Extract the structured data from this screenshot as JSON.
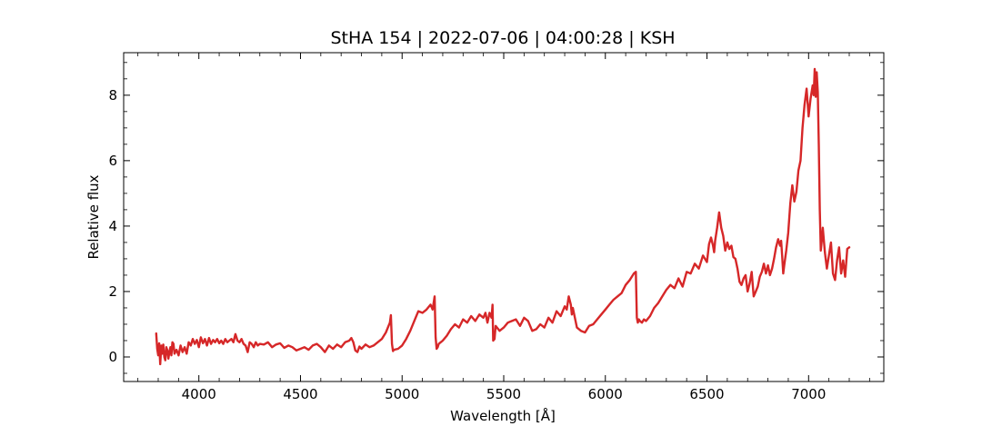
{
  "chart_data": {
    "type": "line",
    "title": "StHA 154 | 2022-07-06 | 04:00:28 | KSH",
    "xlabel": "Wavelength [Å]",
    "ylabel": "Relative flux",
    "xlim": [
      3630,
      7370
    ],
    "ylim": [
      -0.75,
      9.3
    ],
    "xticks": [
      4000,
      4500,
      5000,
      5500,
      6000,
      6500,
      7000
    ],
    "yticks": [
      0,
      2,
      4,
      6,
      8
    ],
    "grid": false,
    "line_color": "#d62728",
    "series": [
      {
        "x": [
          3790,
          3795,
          3800,
          3805,
          3810,
          3815,
          3820,
          3825,
          3830,
          3835,
          3840,
          3845,
          3850,
          3855,
          3860,
          3865,
          3870,
          3875,
          3880,
          3890,
          3900,
          3910,
          3920,
          3930,
          3940,
          3950,
          3960,
          3970,
          3980,
          3990,
          4000,
          4010,
          4020,
          4030,
          4040,
          4050,
          4060,
          4070,
          4080,
          4090,
          4100,
          4110,
          4120,
          4130,
          4140,
          4150,
          4160,
          4170,
          4180,
          4190,
          4200,
          4210,
          4220,
          4230,
          4240,
          4250,
          4260,
          4270,
          4280,
          4290,
          4300,
          4320,
          4340,
          4360,
          4380,
          4400,
          4420,
          4440,
          4460,
          4480,
          4500,
          4520,
          4540,
          4560,
          4580,
          4600,
          4620,
          4640,
          4660,
          4680,
          4700,
          4720,
          4740,
          4750,
          4760,
          4770,
          4780,
          4790,
          4800,
          4820,
          4840,
          4860,
          4880,
          4900,
          4920,
          4930,
          4940,
          4945,
          4950,
          4955,
          4960,
          4980,
          5000,
          5020,
          5040,
          5060,
          5080,
          5100,
          5120,
          5140,
          5150,
          5160,
          5165,
          5170,
          5175,
          5180,
          5190,
          5200,
          5220,
          5240,
          5260,
          5280,
          5300,
          5320,
          5340,
          5360,
          5380,
          5400,
          5410,
          5420,
          5430,
          5440,
          5445,
          5448,
          5455,
          5460,
          5480,
          5500,
          5520,
          5540,
          5560,
          5580,
          5600,
          5620,
          5640,
          5660,
          5680,
          5700,
          5720,
          5740,
          5760,
          5780,
          5800,
          5810,
          5820,
          5830,
          5835,
          5840,
          5860,
          5880,
          5900,
          5920,
          5940,
          5960,
          5980,
          6000,
          6020,
          6040,
          6060,
          6080,
          6100,
          6120,
          6140,
          6150,
          6155,
          6160,
          6165,
          6170,
          6180,
          6190,
          6200,
          6220,
          6240,
          6260,
          6280,
          6300,
          6320,
          6340,
          6360,
          6380,
          6400,
          6420,
          6440,
          6460,
          6480,
          6500,
          6510,
          6520,
          6530,
          6535,
          6540,
          6550,
          6560,
          6570,
          6580,
          6590,
          6600,
          6610,
          6620,
          6630,
          6640,
          6650,
          6660,
          6670,
          6680,
          6690,
          6700,
          6710,
          6720,
          6730,
          6740,
          6750,
          6760,
          6770,
          6780,
          6790,
          6800,
          6810,
          6820,
          6830,
          6840,
          6850,
          6860,
          6865,
          6870,
          6875,
          6880,
          6890,
          6900,
          6910,
          6920,
          6930,
          6940,
          6950,
          6960,
          6970,
          6980,
          6990,
          7000,
          7010,
          7020,
          7025,
          7030,
          7035,
          7040,
          7045,
          7050,
          7055,
          7060,
          7065,
          7070,
          7080,
          7090,
          7100,
          7110,
          7120,
          7130,
          7140,
          7150,
          7160,
          7170,
          7180,
          7190,
          7200
        ],
        "y": [
          0.72,
          0.25,
          0.05,
          0.42,
          -0.22,
          0.35,
          0.1,
          0.38,
          0.0,
          -0.1,
          0.3,
          0.2,
          -0.05,
          0.15,
          0.3,
          0.05,
          0.45,
          0.4,
          0.1,
          0.22,
          0.05,
          0.35,
          0.15,
          0.3,
          0.1,
          0.45,
          0.35,
          0.55,
          0.4,
          0.52,
          0.3,
          0.6,
          0.42,
          0.55,
          0.35,
          0.58,
          0.4,
          0.52,
          0.45,
          0.55,
          0.42,
          0.5,
          0.4,
          0.55,
          0.45,
          0.5,
          0.55,
          0.45,
          0.7,
          0.5,
          0.45,
          0.55,
          0.4,
          0.35,
          0.15,
          0.45,
          0.4,
          0.3,
          0.45,
          0.35,
          0.4,
          0.38,
          0.45,
          0.3,
          0.38,
          0.42,
          0.28,
          0.35,
          0.3,
          0.2,
          0.25,
          0.3,
          0.22,
          0.35,
          0.4,
          0.3,
          0.15,
          0.35,
          0.25,
          0.38,
          0.3,
          0.45,
          0.5,
          0.58,
          0.45,
          0.2,
          0.15,
          0.32,
          0.25,
          0.38,
          0.3,
          0.35,
          0.45,
          0.55,
          0.75,
          0.9,
          1.05,
          1.28,
          0.4,
          0.18,
          0.22,
          0.25,
          0.35,
          0.55,
          0.8,
          1.1,
          1.4,
          1.35,
          1.45,
          1.6,
          1.45,
          1.85,
          0.6,
          0.25,
          0.3,
          0.4,
          0.45,
          0.5,
          0.65,
          0.85,
          1.0,
          0.9,
          1.15,
          1.05,
          1.25,
          1.1,
          1.3,
          1.2,
          1.35,
          1.05,
          1.35,
          1.2,
          1.6,
          0.5,
          0.55,
          0.95,
          0.8,
          0.9,
          1.05,
          1.1,
          1.15,
          0.95,
          1.2,
          1.1,
          0.8,
          0.85,
          1.0,
          0.9,
          1.2,
          1.05,
          1.4,
          1.25,
          1.55,
          1.45,
          1.85,
          1.6,
          1.3,
          1.5,
          0.9,
          0.8,
          0.75,
          0.95,
          1.0,
          1.15,
          1.3,
          1.45,
          1.6,
          1.75,
          1.85,
          1.95,
          2.2,
          2.35,
          2.55,
          2.6,
          1.2,
          1.05,
          1.15,
          1.1,
          1.05,
          1.15,
          1.1,
          1.25,
          1.5,
          1.65,
          1.85,
          2.05,
          2.2,
          2.1,
          2.4,
          2.15,
          2.6,
          2.55,
          2.85,
          2.7,
          3.1,
          2.9,
          3.45,
          3.65,
          3.4,
          3.2,
          3.55,
          3.95,
          4.42,
          3.95,
          3.7,
          3.25,
          3.5,
          3.3,
          3.4,
          3.05,
          3.0,
          2.7,
          2.3,
          2.2,
          2.4,
          2.5,
          2.0,
          2.25,
          2.6,
          1.85,
          2.0,
          2.15,
          2.45,
          2.6,
          2.85,
          2.55,
          2.8,
          2.5,
          2.7,
          3.0,
          3.35,
          3.6,
          3.4,
          3.55,
          3.1,
          2.55,
          2.8,
          3.25,
          3.8,
          4.7,
          5.25,
          4.75,
          5.05,
          5.7,
          6.0,
          7.0,
          7.7,
          8.2,
          7.35,
          7.9,
          8.3,
          8.0,
          8.8,
          7.95,
          8.7,
          8.1,
          6.5,
          4.5,
          3.25,
          3.55,
          3.95,
          3.2,
          2.7,
          3.1,
          3.5,
          2.55,
          2.35,
          2.95,
          3.35,
          2.55,
          2.95,
          2.45,
          3.3,
          3.35
        ]
      }
    ]
  }
}
